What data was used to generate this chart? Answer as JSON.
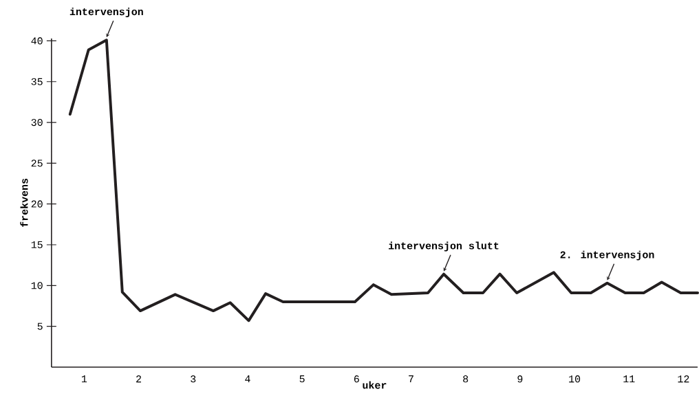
{
  "chart_data": {
    "type": "line",
    "xlabel": "uker",
    "ylabel": "frekvens",
    "color": "#231f20",
    "marker": "none",
    "line_style": "solid",
    "grid": false,
    "legend": false,
    "x": [
      0.74,
      1.08,
      1.41,
      1.7,
      2.03,
      2.67,
      3.37,
      3.68,
      4.02,
      4.33,
      4.65,
      5.97,
      6.31,
      6.64,
      7.31,
      7.6,
      7.96,
      8.32,
      8.63,
      8.94,
      9.62,
      9.94,
      10.3,
      10.6,
      10.93,
      11.27,
      11.6,
      11.95,
      12.26
    ],
    "values": [
      31,
      38.9,
      40.1,
      9.2,
      6.9,
      8.9,
      6.9,
      7.9,
      5.7,
      9,
      8,
      8,
      10.1,
      8.9,
      9.1,
      11.4,
      9.1,
      9.1,
      11.4,
      9.1,
      11.6,
      9.1,
      9.1,
      10.3,
      9.1,
      9.1,
      10.4,
      9.1,
      9.1
    ],
    "xlim": [
      0.4,
      12.26
    ],
    "ylim": [
      0,
      40.3
    ],
    "xticks": [
      1,
      2,
      3,
      4,
      5,
      6,
      7,
      8,
      9,
      10,
      11,
      12
    ],
    "yticks": [
      5,
      10,
      15,
      20,
      25,
      30,
      35,
      40
    ],
    "annotations": [
      {
        "text": "intervensjon",
        "x": 1.41,
        "y": 40.1
      },
      {
        "text": "intervensjon slutt",
        "x": 7.6,
        "y": 11.4
      },
      {
        "text": "2. intervensjon",
        "x": 10.6,
        "y": 10.3
      }
    ]
  }
}
